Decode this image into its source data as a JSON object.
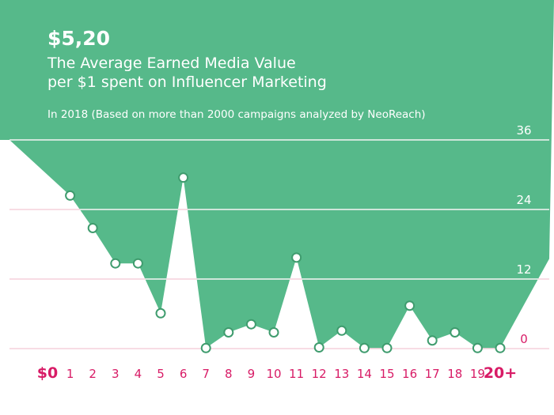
{
  "headline": "$5,20",
  "subtitle_line1": "The Average Earned Media Value",
  "subtitle_line2": "per $1 spent on Influencer Marketing",
  "note": "In 2018 (Based on more than 2000 campaigns analyzed by NeoReach)",
  "colors": {
    "area": "#56b98a",
    "point_fill": "#ffffff",
    "point_stroke": "#3f9c6e",
    "grid_on_area": "#ffffff",
    "grid_on_white": "#f3c7d3",
    "tick_label": "#d81b66",
    "title_text": "#ffffff"
  },
  "chart_data": {
    "type": "area",
    "x_tick_labels": [
      "$0",
      "1",
      "2",
      "3",
      "4",
      "5",
      "6",
      "7",
      "8",
      "9",
      "10",
      "11",
      "12",
      "13",
      "14",
      "15",
      "16",
      "17",
      "18",
      "19",
      "20+"
    ],
    "y_tick_labels": [
      "0",
      "12",
      "24",
      "36"
    ],
    "ylim": [
      0,
      36
    ],
    "points": [
      {
        "x": "$0",
        "y": 36
      },
      {
        "x": "1",
        "y": 26.4
      },
      {
        "x": "2",
        "y": 20.8
      },
      {
        "x": "3",
        "y": 14.7
      },
      {
        "x": "4",
        "y": 14.7
      },
      {
        "x": "5",
        "y": 6.1
      },
      {
        "x": "6",
        "y": 29.5
      },
      {
        "x": "7",
        "y": 0.1
      },
      {
        "x": "8",
        "y": 2.8
      },
      {
        "x": "9",
        "y": 4.2
      },
      {
        "x": "10",
        "y": 2.8
      },
      {
        "x": "11",
        "y": 15.7
      },
      {
        "x": "12",
        "y": 0.2
      },
      {
        "x": "13",
        "y": 3.1
      },
      {
        "x": "14",
        "y": 0.1
      },
      {
        "x": "15",
        "y": 0.1
      },
      {
        "x": "16",
        "y": 7.4
      },
      {
        "x": "17",
        "y": 1.4
      },
      {
        "x": "18",
        "y": 2.8
      },
      {
        "x": "19",
        "y": 0.1
      },
      {
        "x": "20+",
        "y": 0.1
      },
      {
        "x": "20+",
        "y": 15.5
      }
    ],
    "markers": [
      {
        "x": "1",
        "y": 26.4
      },
      {
        "x": "2",
        "y": 20.8
      },
      {
        "x": "3",
        "y": 14.7
      },
      {
        "x": "4",
        "y": 14.7
      },
      {
        "x": "5",
        "y": 6.1
      },
      {
        "x": "6",
        "y": 29.5
      },
      {
        "x": "7",
        "y": 0.1
      },
      {
        "x": "8",
        "y": 2.8
      },
      {
        "x": "9",
        "y": 4.2
      },
      {
        "x": "10",
        "y": 2.8
      },
      {
        "x": "11",
        "y": 15.7
      },
      {
        "x": "12",
        "y": 0.2
      },
      {
        "x": "13",
        "y": 3.1
      },
      {
        "x": "14",
        "y": 0.1
      },
      {
        "x": "15",
        "y": 0.1
      },
      {
        "x": "16",
        "y": 7.4
      },
      {
        "x": "17",
        "y": 1.4
      },
      {
        "x": "18",
        "y": 2.8
      },
      {
        "x": "19",
        "y": 0.1
      },
      {
        "x": "20+",
        "y": 0.1
      }
    ],
    "grid": true
  }
}
